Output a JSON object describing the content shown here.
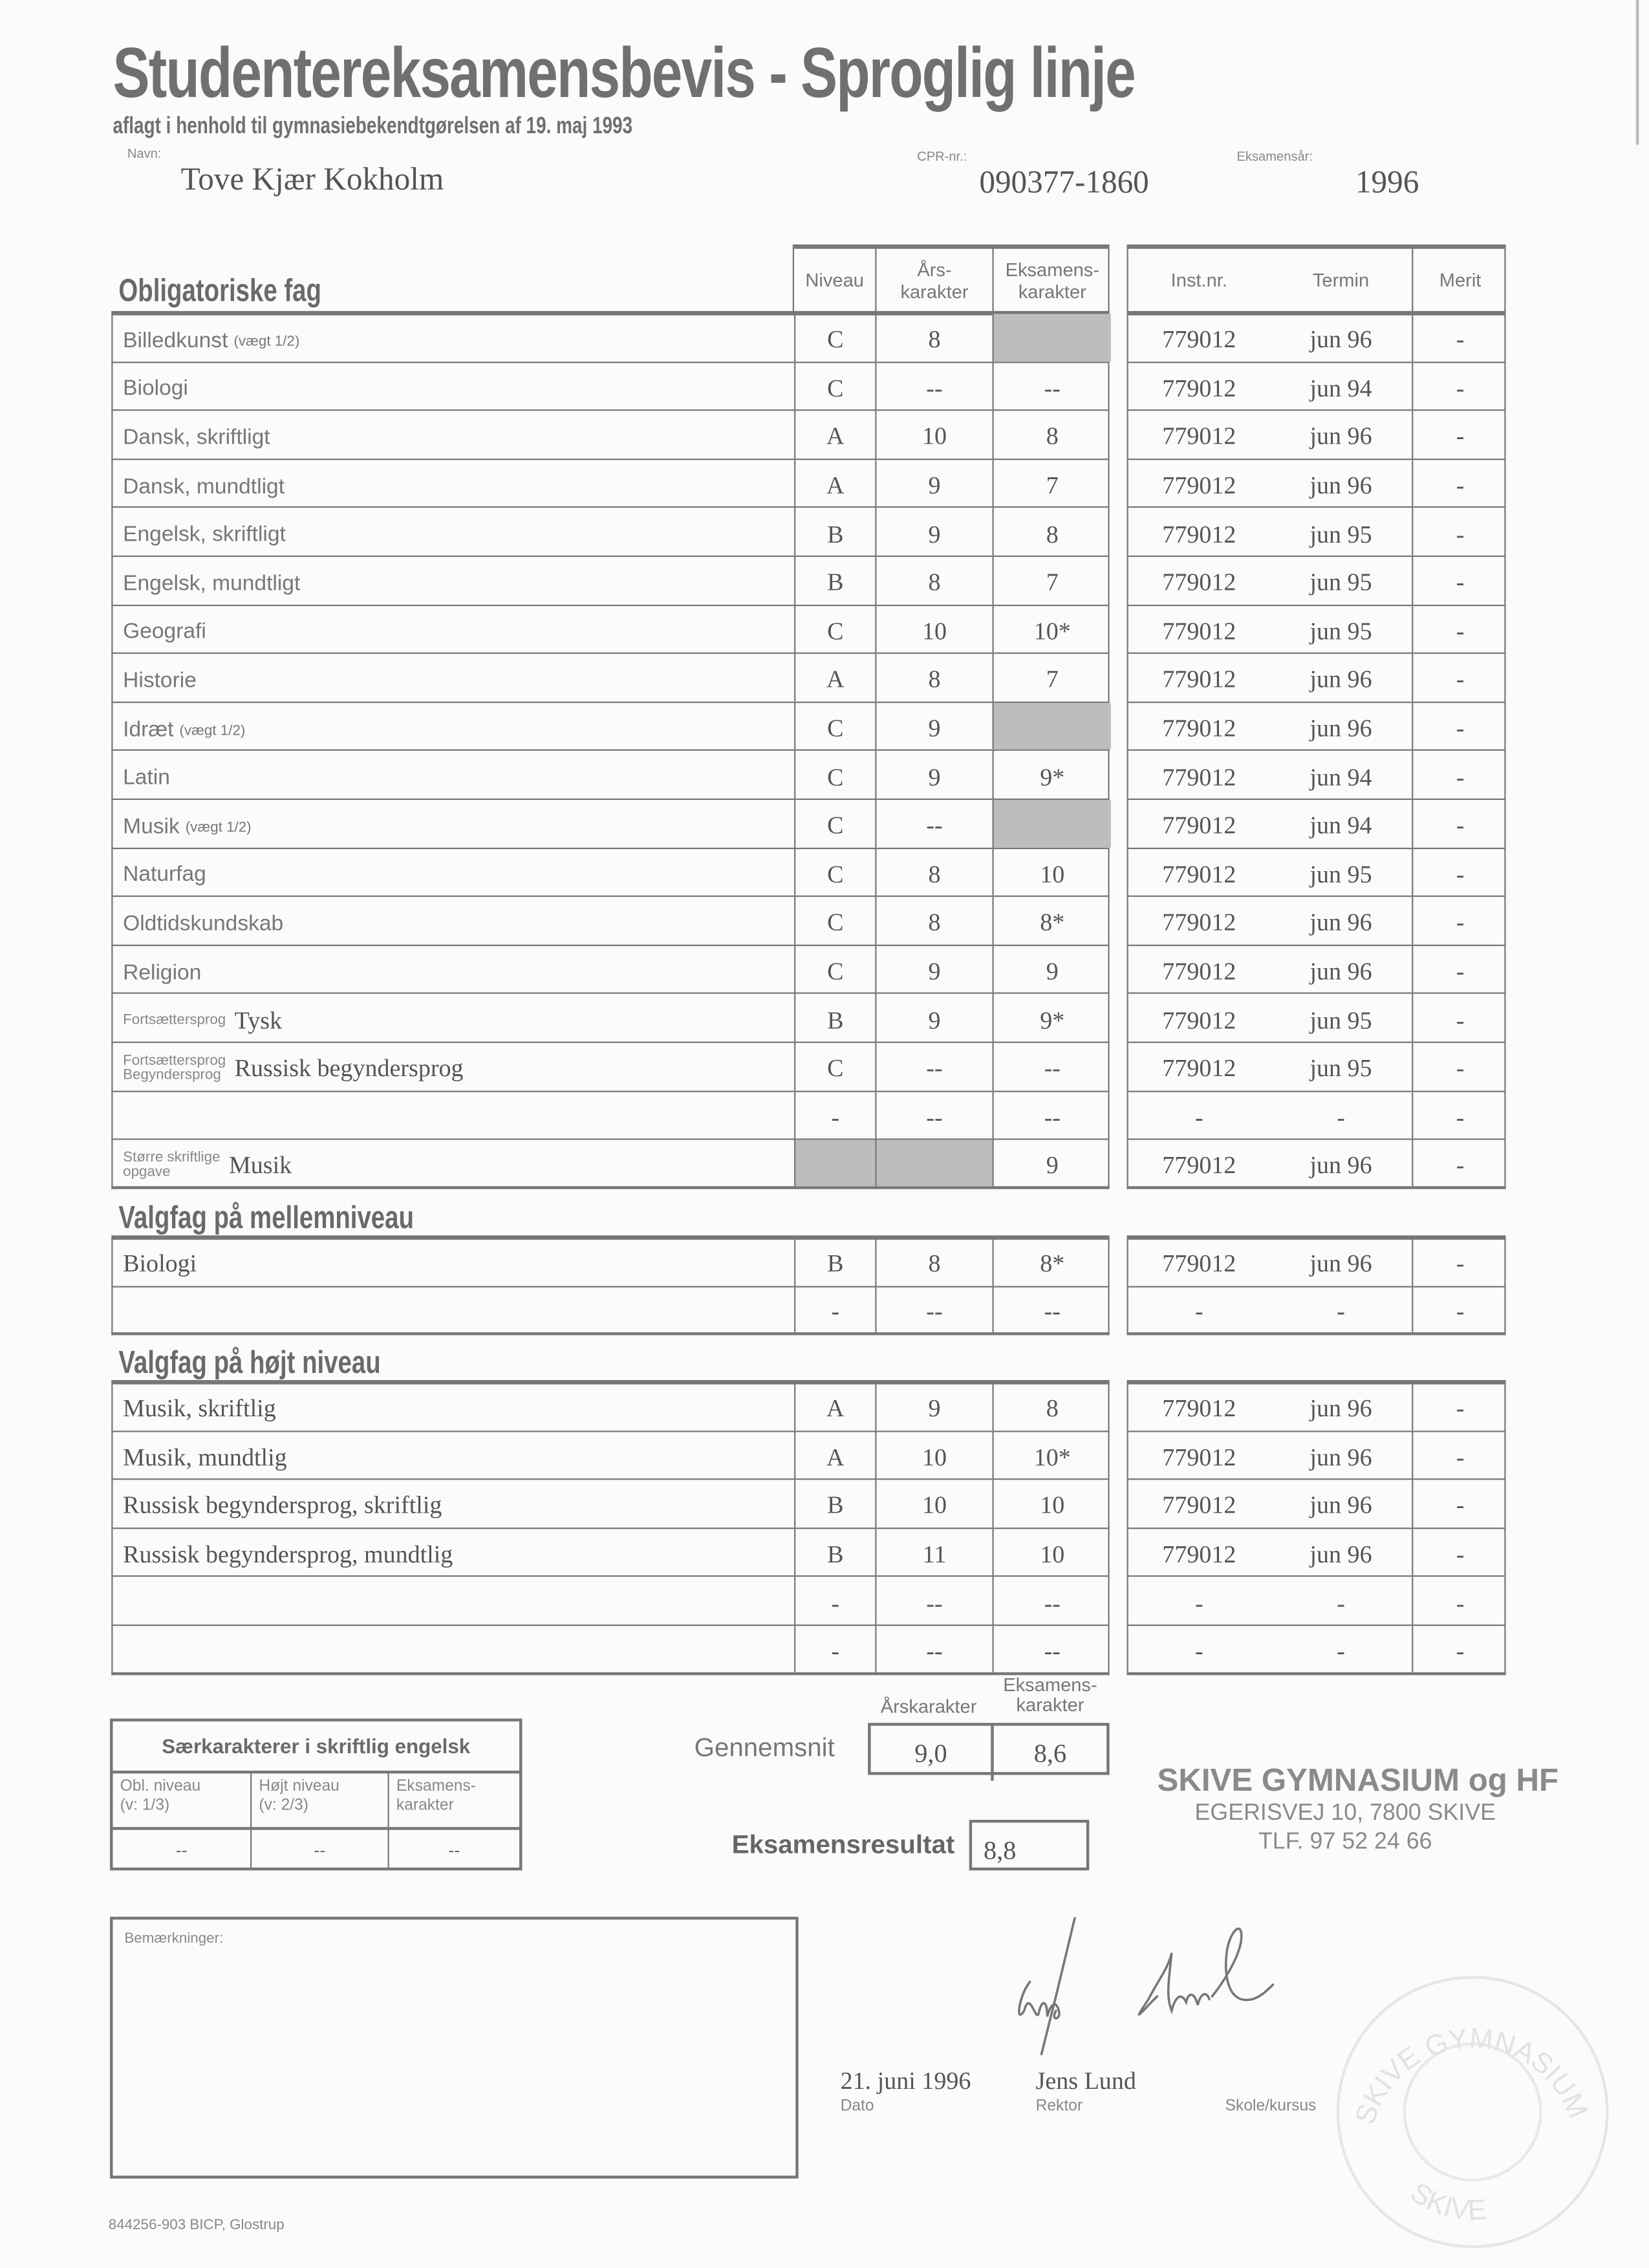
{
  "header": {
    "title": "Studentereksamensbevis - Sproglig linje",
    "subtitle": "aflagt i henhold til gymnasiebekendtgørelsen af 19. maj 1993",
    "name_label": "Navn:",
    "name": "Tove Kjær Kokholm",
    "cpr_label": "CPR-nr.:",
    "cpr": "090377-1860",
    "year_label": "Eksamensår:",
    "year": "1996"
  },
  "columns": {
    "niveau": "Niveau",
    "aars": "Års-\nkarakter",
    "eks": "Eksamens-\nkarakter",
    "inst": "Inst.nr.",
    "termin": "Termin",
    "merit": "Merit"
  },
  "obligatoriske": {
    "heading": "Obligatoriske fag",
    "rows": [
      {
        "subject": "Billedkunst",
        "note": "(vægt 1/2)",
        "niveau": "C",
        "aars": "8",
        "eks": "",
        "shaded": [
          "eks"
        ],
        "inst": "779012",
        "termin": "jun 96",
        "merit": "-"
      },
      {
        "subject": "Biologi",
        "niveau": "C",
        "aars": "--",
        "eks": "--",
        "inst": "779012",
        "termin": "jun 94",
        "merit": "-"
      },
      {
        "subject": "Dansk, skriftligt",
        "niveau": "A",
        "aars": "10",
        "eks": "8",
        "inst": "779012",
        "termin": "jun 96",
        "merit": "-"
      },
      {
        "subject": "Dansk, mundtligt",
        "niveau": "A",
        "aars": "9",
        "eks": "7",
        "inst": "779012",
        "termin": "jun 96",
        "merit": "-"
      },
      {
        "subject": "Engelsk, skriftligt",
        "niveau": "B",
        "aars": "9",
        "eks": "8",
        "inst": "779012",
        "termin": "jun 95",
        "merit": "-"
      },
      {
        "subject": "Engelsk, mundtligt",
        "niveau": "B",
        "aars": "8",
        "eks": "7",
        "inst": "779012",
        "termin": "jun 95",
        "merit": "-"
      },
      {
        "subject": "Geografi",
        "niveau": "C",
        "aars": "10",
        "eks": "10*",
        "inst": "779012",
        "termin": "jun 95",
        "merit": "-"
      },
      {
        "subject": "Historie",
        "niveau": "A",
        "aars": "8",
        "eks": "7",
        "inst": "779012",
        "termin": "jun 96",
        "merit": "-"
      },
      {
        "subject": "Idræt",
        "note": "(vægt 1/2)",
        "niveau": "C",
        "aars": "9",
        "eks": "",
        "shaded": [
          "eks"
        ],
        "inst": "779012",
        "termin": "jun 96",
        "merit": "-"
      },
      {
        "subject": "Latin",
        "niveau": "C",
        "aars": "9",
        "eks": "9*",
        "inst": "779012",
        "termin": "jun 94",
        "merit": "-"
      },
      {
        "subject": "Musik",
        "note": "(vægt 1/2)",
        "niveau": "C",
        "aars": "--",
        "eks": "",
        "shaded": [
          "eks"
        ],
        "inst": "779012",
        "termin": "jun 94",
        "merit": "-"
      },
      {
        "subject": "Naturfag",
        "niveau": "C",
        "aars": "8",
        "eks": "10",
        "inst": "779012",
        "termin": "jun 95",
        "merit": "-"
      },
      {
        "subject": "Oldtidskundskab",
        "niveau": "C",
        "aars": "8",
        "eks": "8*",
        "inst": "779012",
        "termin": "jun 96",
        "merit": "-"
      },
      {
        "subject": "Religion",
        "niveau": "C",
        "aars": "9",
        "eks": "9",
        "inst": "779012",
        "termin": "jun 96",
        "merit": "-"
      },
      {
        "prefix": [
          "Fortsættersprog"
        ],
        "subject": "Tysk",
        "niveau": "B",
        "aars": "9",
        "eks": "9*",
        "inst": "779012",
        "termin": "jun 95",
        "merit": "-"
      },
      {
        "prefix": [
          "Fortsættersprog",
          "Begyndersprog"
        ],
        "subject": "Russisk begyndersprog",
        "niveau": "C",
        "aars": "--",
        "eks": "--",
        "inst": "779012",
        "termin": "jun 95",
        "merit": "-"
      },
      {
        "subject": "",
        "niveau": "-",
        "aars": "--",
        "eks": "--",
        "inst": "-",
        "termin": "-",
        "merit": "-"
      },
      {
        "prefix": [
          "Større skriftlige",
          "opgave"
        ],
        "subject": "Musik",
        "niveau": "",
        "aars": "",
        "eks": "9",
        "shaded": [
          "niveau",
          "aars"
        ],
        "inst": "779012",
        "termin": "jun 96",
        "merit": "-"
      }
    ]
  },
  "mellem": {
    "heading": "Valgfag på mellemniveau",
    "rows": [
      {
        "subject": "Biologi",
        "niveau": "B",
        "aars": "8",
        "eks": "8*",
        "inst": "779012",
        "termin": "jun 96",
        "merit": "-"
      },
      {
        "subject": "",
        "niveau": "-",
        "aars": "--",
        "eks": "--",
        "inst": "-",
        "termin": "-",
        "merit": "-"
      }
    ]
  },
  "hoejt": {
    "heading": "Valgfag på højt niveau",
    "rows": [
      {
        "subject": "Musik, skriftlig",
        "niveau": "A",
        "aars": "9",
        "eks": "8",
        "inst": "779012",
        "termin": "jun 96",
        "merit": "-"
      },
      {
        "subject": "Musik, mundtlig",
        "niveau": "A",
        "aars": "10",
        "eks": "10*",
        "inst": "779012",
        "termin": "jun 96",
        "merit": "-"
      },
      {
        "subject": "Russisk begyndersprog, skriftlig",
        "niveau": "B",
        "aars": "10",
        "eks": "10",
        "inst": "779012",
        "termin": "jun 96",
        "merit": "-"
      },
      {
        "subject": "Russisk begyndersprog, mundtlig",
        "niveau": "B",
        "aars": "11",
        "eks": "10",
        "inst": "779012",
        "termin": "jun 96",
        "merit": "-"
      },
      {
        "subject": "",
        "niveau": "-",
        "aars": "--",
        "eks": "--",
        "inst": "-",
        "termin": "-",
        "merit": "-"
      },
      {
        "subject": "",
        "niveau": "-",
        "aars": "--",
        "eks": "--",
        "inst": "-",
        "termin": "-",
        "merit": "-"
      }
    ]
  },
  "saerkarakterer": {
    "title": "Særkarakterer i skriftlig engelsk",
    "headers": [
      "Obl. niveau\n(v: 1/3)",
      "Højt niveau\n(v: 2/3)",
      "Eksamens-\nkarakter"
    ],
    "values": [
      "--",
      "--",
      "--"
    ]
  },
  "gennemsnit": {
    "label": "Gennemsnit",
    "aars_header": "Årskarakter",
    "eks_header": "Eksamens-\nkarakter",
    "aars": "9,0",
    "eks": "8,6"
  },
  "resultat": {
    "label": "Eksamensresultat",
    "value": "8,8"
  },
  "school_stamp": {
    "line1": "SKIVE GYMNASIUM og HF",
    "line2": "EGERISVEJ 10, 7800 SKIVE",
    "line3": "TLF. 97 52 24 66"
  },
  "remarks": {
    "label": "Bemærkninger:"
  },
  "signature": {
    "date": "21. juni 1996",
    "date_label": "Dato",
    "rector": "Jens Lund",
    "rector_label": "Rektor",
    "school_label": "Skole/kursus"
  },
  "seal": {
    "top_text": "SKIVE GYMNASIUM",
    "bottom_text": "SKIVE"
  },
  "footer": {
    "printer": "844256-903 BICP, Glostrup"
  }
}
